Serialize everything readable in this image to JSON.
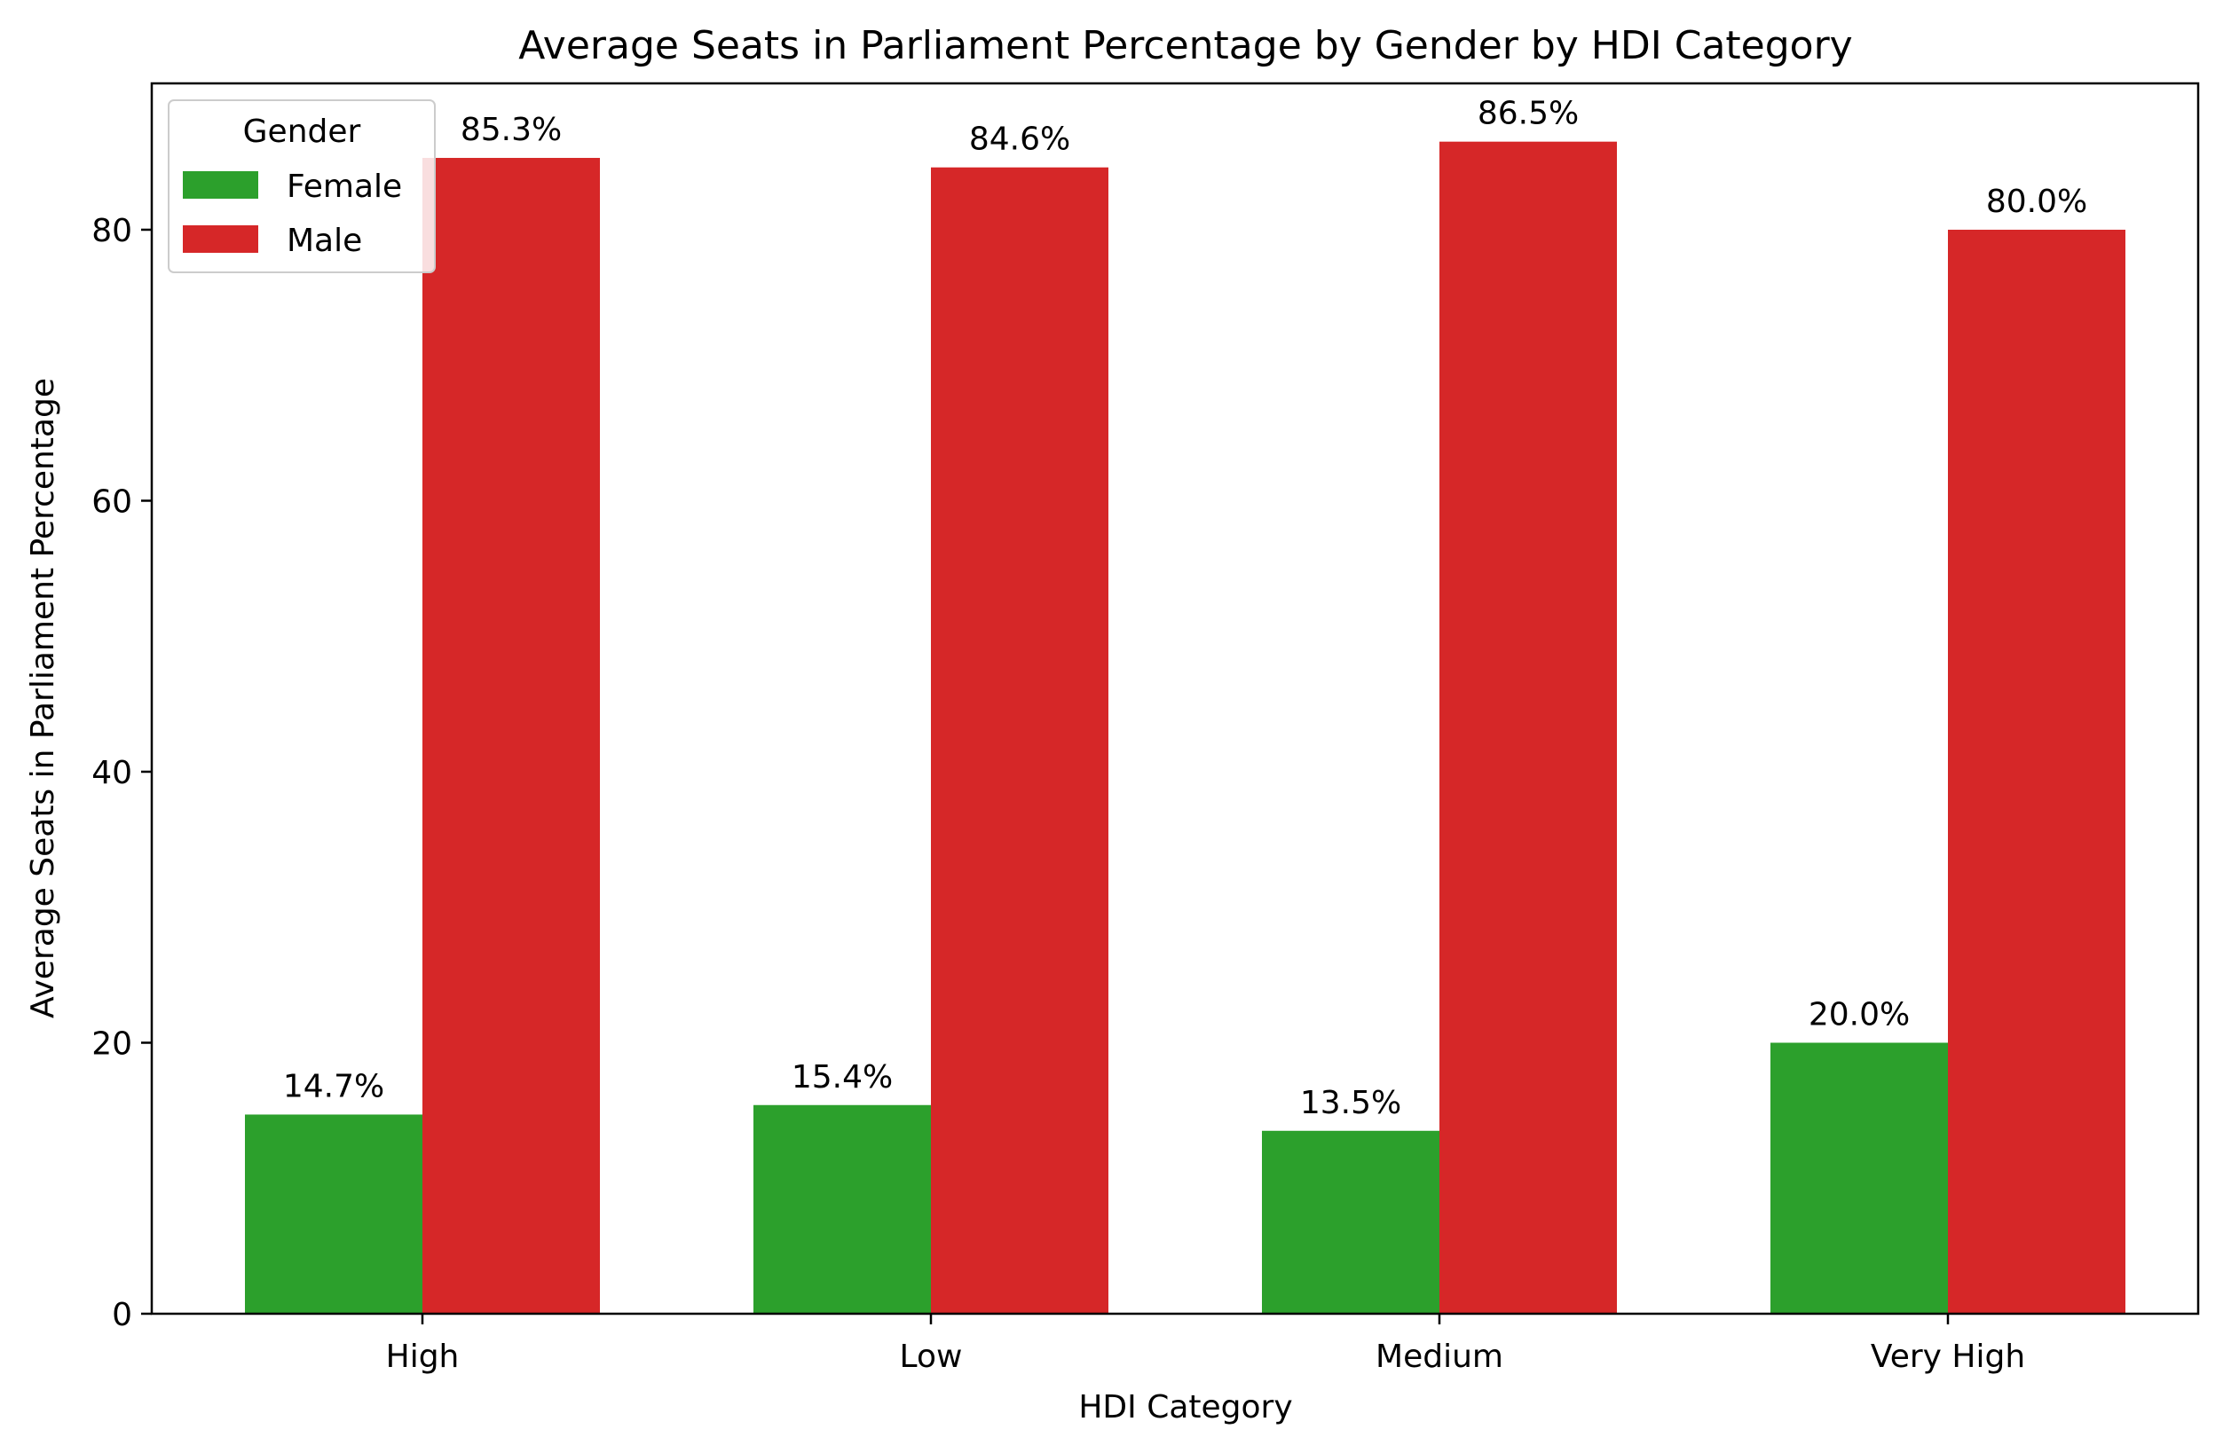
{
  "chart_data": {
    "type": "bar",
    "title": "Average Seats in Parliament Percentage by Gender by HDI Category",
    "xlabel": "HDI Category",
    "ylabel": "Average Seats in Parliament Percentage",
    "categories": [
      "High",
      "Low",
      "Medium",
      "Very High"
    ],
    "series": [
      {
        "name": "Female",
        "color": "#2ca02c",
        "values": [
          14.7,
          15.4,
          13.5,
          20.0
        ],
        "labels": [
          "14.7%",
          "15.4%",
          "13.5%",
          "20.0%"
        ]
      },
      {
        "name": "Male",
        "color": "#d62728",
        "values": [
          85.3,
          84.6,
          86.5,
          80.0
        ],
        "labels": [
          "85.3%",
          "84.6%",
          "86.5%",
          "80.0%"
        ]
      }
    ],
    "ylim": [
      0,
      90.8
    ],
    "yticks": [
      0,
      20,
      40,
      60,
      80
    ],
    "grid": false,
    "legend": {
      "title": "Gender",
      "placement": "top-left"
    }
  }
}
